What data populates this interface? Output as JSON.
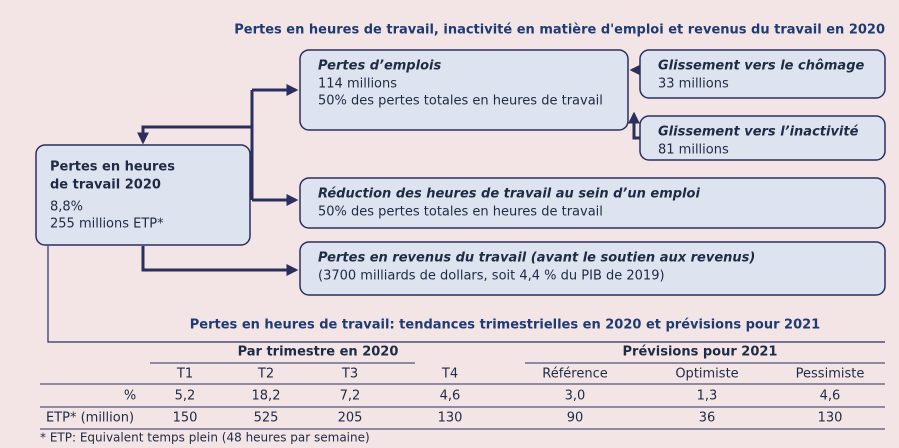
{
  "title": "Pertes en heures de travail, inactivité en matière d'emploi et revenus du travail en 2020",
  "nodes": [
    {
      "heading": [
        "Pertes en heures",
        "de travail 2020"
      ],
      "lines": [
        "8,8%",
        "255 millions ETP*"
      ]
    },
    {
      "heading": [
        "Pertes d’emplois"
      ],
      "lines": [
        "114 millions",
        "50% des pertes totales en heures de travail"
      ]
    },
    {
      "heading": [
        "Glissement vers le chômage"
      ],
      "lines": [
        "33 millions"
      ]
    },
    {
      "heading": [
        "Glissement vers l’inactivité"
      ],
      "lines": [
        "81 millions"
      ]
    },
    {
      "heading": [
        "Réduction des heures de travail au sein d’un emploi"
      ],
      "lines": [
        "50% des pertes totales en heures de travail"
      ]
    },
    {
      "heading": [
        "Pertes en revenus du travail (avant le soutien aux revenus)"
      ],
      "lines": [
        "(3700 milliards de dollars, soit 4,4 % du PIB de 2019)"
      ]
    }
  ],
  "table": {
    "title": "Pertes en heures de travail: tendances trimestrielles en 2020 et prévisions pour 2021",
    "groups": [
      "Par trimestre en 2020",
      "Prévisions pour 2021"
    ],
    "columns": [
      "T1",
      "T2",
      "T3",
      "T4",
      "Référence",
      "Optimiste",
      "Pessimiste"
    ],
    "rows": [
      [
        "%",
        "5,2",
        "18,2",
        "7,2",
        "4,6",
        "3,0",
        "1,3",
        "4,6"
      ],
      [
        "ETP* (million)",
        "150",
        "525",
        "205",
        "130",
        "90",
        "36",
        "130"
      ]
    ]
  },
  "footnote": "* ETP: Equivalent temps plein (48 heures par semaine)"
}
